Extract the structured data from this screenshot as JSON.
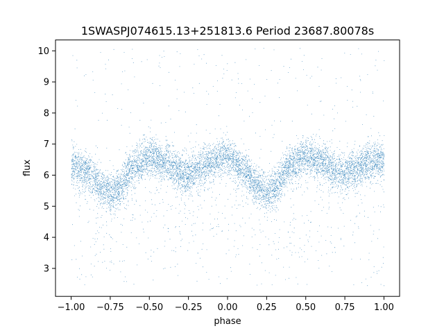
{
  "chart_data": {
    "type": "scatter",
    "title": "1SWASPJ074615.13+251813.6 Period 23687.80078s",
    "xlabel": "phase",
    "ylabel": "flux",
    "xlim": [
      -1.1,
      1.1
    ],
    "ylim": [
      2.1,
      10.35
    ],
    "x_ticks": [
      -1.0,
      -0.75,
      -0.5,
      -0.25,
      0.0,
      0.25,
      0.5,
      0.75,
      1.0
    ],
    "x_tick_labels": [
      "−1.00",
      "−0.75",
      "−0.50",
      "−0.25",
      "0.00",
      "0.25",
      "0.50",
      "0.75",
      "1.00"
    ],
    "y_ticks": [
      3,
      4,
      5,
      6,
      7,
      8,
      9,
      10
    ],
    "y_tick_labels": [
      "3",
      "4",
      "5",
      "6",
      "7",
      "8",
      "9",
      "10"
    ],
    "grid": false,
    "marker_color": "#1f77b4",
    "phase_range": [
      -1.0,
      1.0
    ],
    "light_curve": {
      "phase": [
        -1.0,
        -0.9,
        -0.8,
        -0.75,
        -0.7,
        -0.6,
        -0.5,
        -0.4,
        -0.3,
        -0.25,
        -0.2,
        -0.1,
        0.0,
        0.1,
        0.2,
        0.25,
        0.3,
        0.4,
        0.5,
        0.6,
        0.7,
        0.75,
        0.8,
        0.9,
        1.0
      ],
      "flux_median": [
        6.3,
        6.1,
        5.6,
        5.45,
        5.6,
        6.3,
        6.6,
        6.45,
        6.1,
        6.0,
        6.2,
        6.5,
        6.6,
        6.15,
        5.6,
        5.45,
        5.6,
        6.3,
        6.6,
        6.45,
        6.1,
        6.0,
        6.2,
        6.45,
        6.5
      ],
      "flux_spread": 0.55
    },
    "notes": "Phase-folded photometric light curve; tens of thousands of points forming a double-wave band between about 5 and 7 in flux, with sparse outliers from about 2.5 to 10."
  }
}
